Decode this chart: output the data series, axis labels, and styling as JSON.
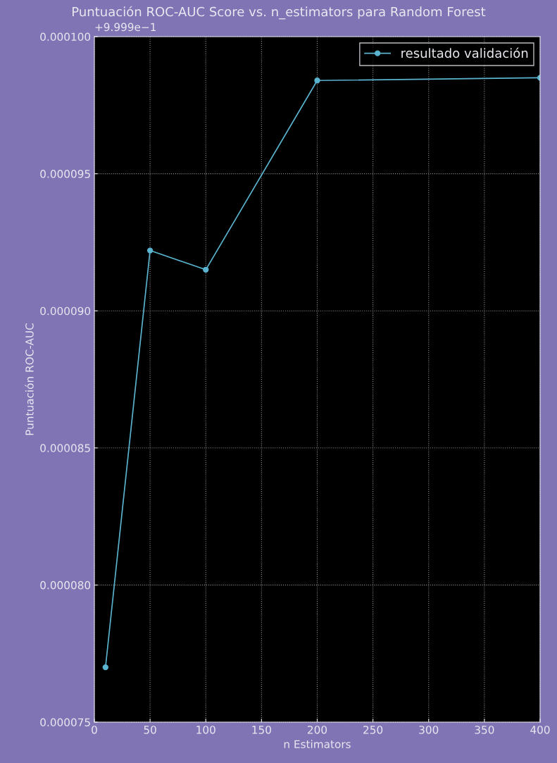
{
  "chart_data": {
    "type": "line",
    "title": "Puntuación ROC-AUC Score vs. n_estimators para Random Forest",
    "xlabel": "n Estimators",
    "ylabel": "Puntuación ROC-AUC",
    "annotations": [
      "+9.999e−1"
    ],
    "x": [
      10,
      50,
      100,
      200,
      400
    ],
    "series": [
      {
        "name": "resultado validación",
        "color": "#5ab4d0",
        "values": [
          7.7e-05,
          9.22e-05,
          9.15e-05,
          9.84e-05,
          9.85e-05
        ]
      }
    ],
    "xlim": [
      0,
      400
    ],
    "xticks": [
      0,
      50,
      100,
      150,
      200,
      250,
      300,
      350,
      400
    ],
    "ylim": [
      7.5e-05,
      0.0001
    ],
    "yticks": [
      {
        "value": 7.5e-05,
        "label": "0.000075"
      },
      {
        "value": 8e-05,
        "label": "0.000080"
      },
      {
        "value": 8.5e-05,
        "label": "0.000085"
      },
      {
        "value": 9e-05,
        "label": "0.000090"
      },
      {
        "value": 9.5e-05,
        "label": "0.000095"
      },
      {
        "value": 0.0001,
        "label": "0.000100"
      }
    ],
    "grid": true,
    "legend": "top right",
    "marker": "circle",
    "line_style": "solid"
  }
}
